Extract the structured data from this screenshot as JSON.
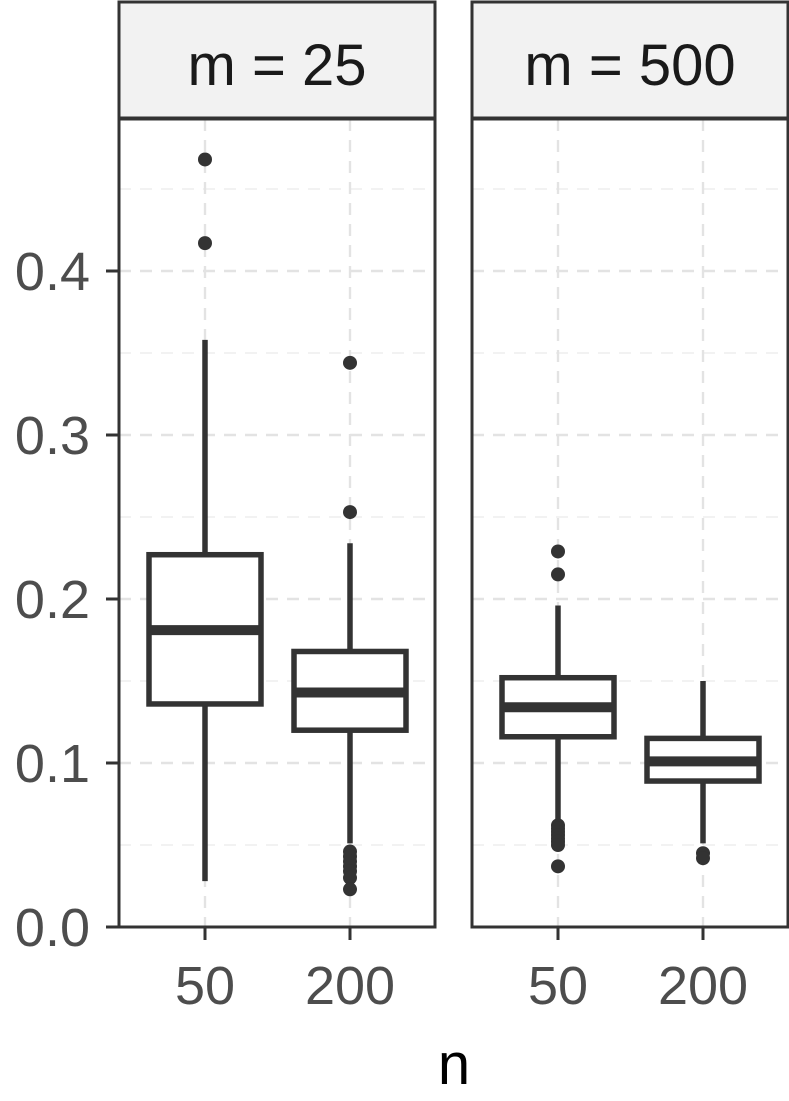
{
  "chart_data": {
    "type": "boxplot",
    "xlabel": "n",
    "ylabel": "",
    "ylim": [
      0.0,
      0.48
    ],
    "yticks": [
      0.0,
      0.1,
      0.2,
      0.3,
      0.4
    ],
    "ytick_labels": [
      "0.0",
      "0.1",
      "0.2",
      "0.3",
      "0.4"
    ],
    "grid": true,
    "categories": [
      "50",
      "200"
    ],
    "panels": [
      {
        "strip": "m = 25",
        "boxes": [
          {
            "category": "50",
            "min": 0.028,
            "q1": 0.136,
            "median": 0.181,
            "q3": 0.227,
            "max": 0.358,
            "outliers": [
              0.417,
              0.468
            ]
          },
          {
            "category": "200",
            "min": 0.051,
            "q1": 0.12,
            "median": 0.143,
            "q3": 0.168,
            "max": 0.234,
            "outliers": [
              0.253,
              0.344,
              0.046,
              0.043,
              0.04,
              0.037,
              0.034,
              0.03,
              0.023
            ]
          }
        ]
      },
      {
        "strip": "m = 500",
        "boxes": [
          {
            "category": "50",
            "min": 0.064,
            "q1": 0.116,
            "median": 0.134,
            "q3": 0.152,
            "max": 0.196,
            "outliers": [
              0.229,
              0.215,
              0.062,
              0.06,
              0.058,
              0.056,
              0.054,
              0.052,
              0.05,
              0.037
            ]
          },
          {
            "category": "200",
            "min": 0.051,
            "q1": 0.089,
            "median": 0.101,
            "q3": 0.115,
            "max": 0.15,
            "outliers": [
              0.045,
              0.042
            ]
          }
        ]
      }
    ]
  }
}
